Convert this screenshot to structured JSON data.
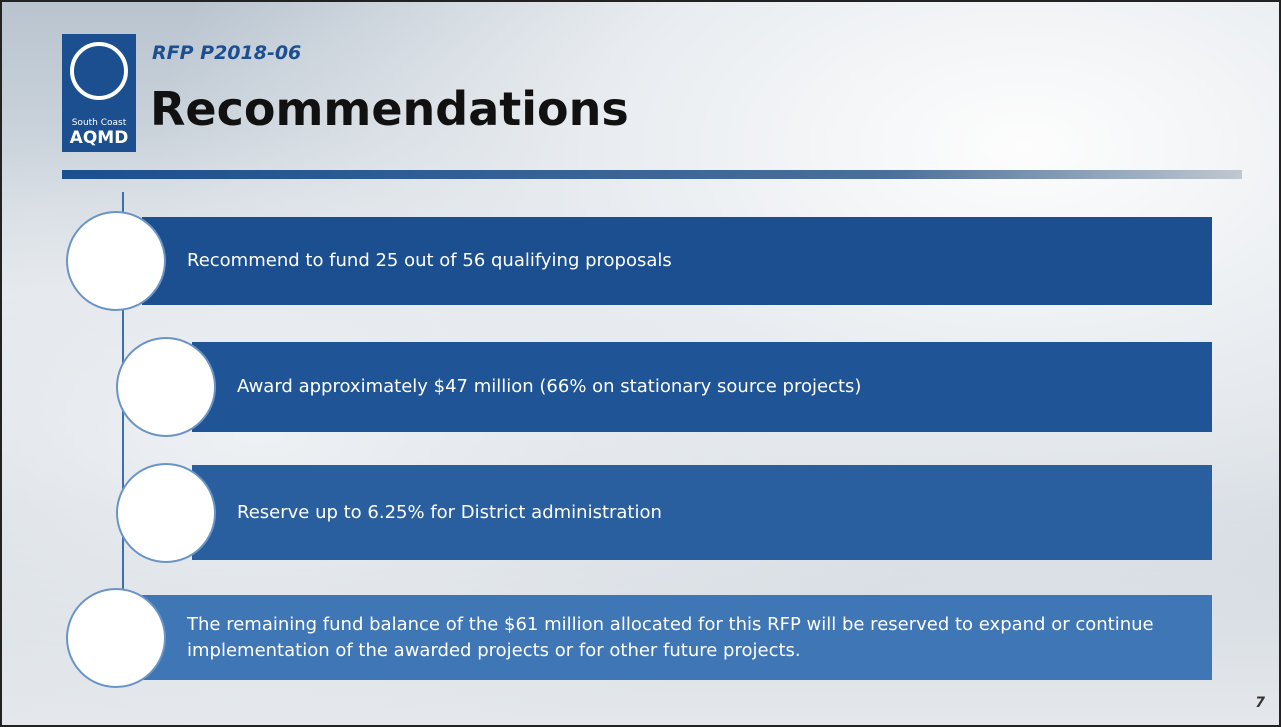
{
  "header": {
    "logo_text": "South Coast",
    "logo_abbr": "AQMD",
    "subtitle": "RFP P2018-06",
    "title": "Recommendations"
  },
  "items": [
    {
      "text": "Recommend to fund 25 out of 56 qualifying proposals"
    },
    {
      "text": "Award approximately $47 million (66% on stationary source projects)"
    },
    {
      "text": "Reserve up to 6.25% for District administration"
    },
    {
      "text": "The remaining fund balance of the $61 million allocated for this RFP will be reserved to expand or continue implementation of the awarded projects or for other future projects."
    }
  ],
  "page_number": "7"
}
